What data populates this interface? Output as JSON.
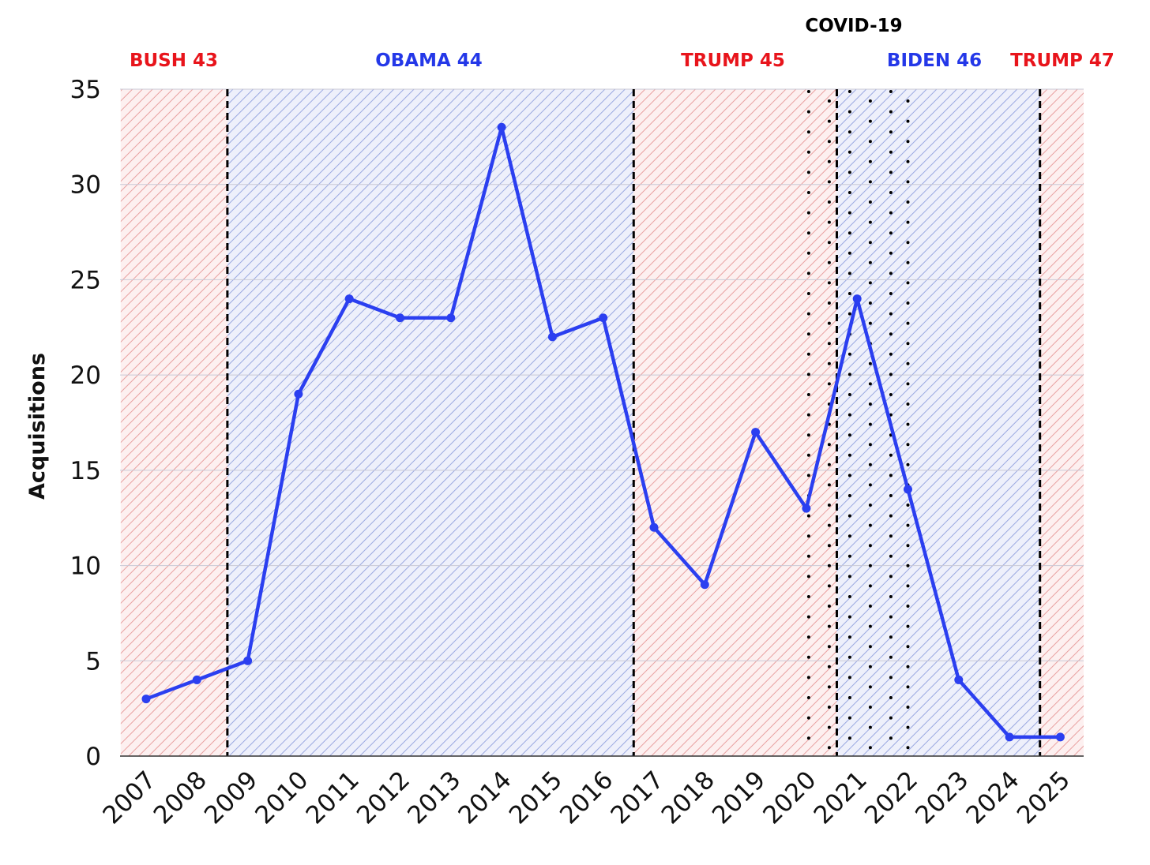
{
  "chart_data": {
    "type": "line",
    "ylabel": "Acquisitions",
    "xlabel": "",
    "title": "",
    "categories": [
      "2007",
      "2008",
      "2009",
      "2010",
      "2011",
      "2012",
      "2013",
      "2014",
      "2015",
      "2016",
      "2017",
      "2018",
      "2019",
      "2020",
      "2021",
      "2022",
      "2023",
      "2024",
      "2025"
    ],
    "series": [
      {
        "values": [
          3,
          4,
          5,
          19,
          24,
          23,
          23,
          33,
          22,
          23,
          12,
          9,
          17,
          13,
          24,
          14,
          4,
          1,
          1
        ]
      }
    ],
    "ylim": [
      0,
      35
    ],
    "yticks": [
      0,
      5,
      10,
      15,
      20,
      25,
      30,
      35
    ],
    "grid": true,
    "line_color": "#2b3ff0",
    "eras": [
      {
        "label": "BUSH 43",
        "start": 2006.5,
        "end": 2008.6,
        "party": "red"
      },
      {
        "label": "OBAMA 44",
        "start": 2008.6,
        "end": 2016.6,
        "party": "blue"
      },
      {
        "label": "TRUMP 45",
        "start": 2016.6,
        "end": 2020.6,
        "party": "red"
      },
      {
        "label": "BIDEN 46",
        "start": 2020.6,
        "end": 2024.6,
        "party": "blue"
      },
      {
        "label": "TRUMP 47",
        "start": 2024.6,
        "end": 2025.5,
        "party": "red"
      }
    ],
    "transitions": [
      2008.6,
      2016.6,
      2020.6,
      2024.6
    ],
    "covid": {
      "label": "COVID-19",
      "start": 2020.0,
      "end": 2022.0
    },
    "colors": {
      "red_text": "#e8141b",
      "blue_text": "#2438e8",
      "red_hatch": "#e8a0a0",
      "blue_hatch": "#9aa8e0",
      "red_fill": "#fdf0f0",
      "blue_fill": "#eef0fb",
      "grid": "#c9c9d6"
    }
  }
}
